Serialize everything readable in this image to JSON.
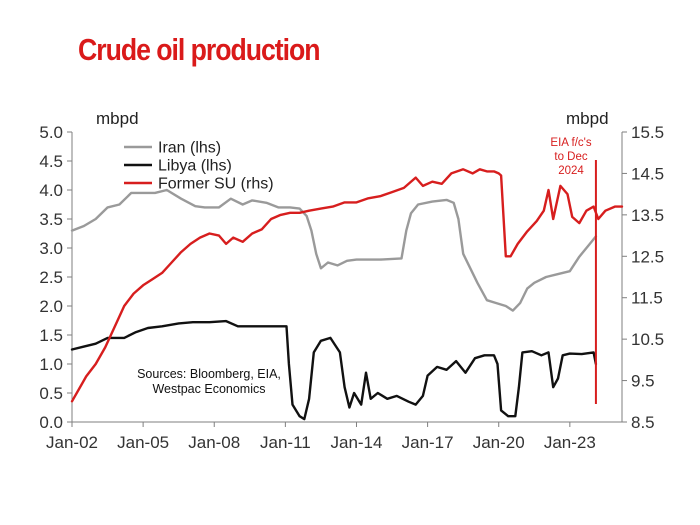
{
  "title": "Crude oil production",
  "chart_data": {
    "type": "line",
    "title": "Crude oil production",
    "left_axis": {
      "unit": "mbpd",
      "ylim": [
        0,
        5
      ],
      "ticks": [
        "0.0",
        "0.5",
        "1.0",
        "1.5",
        "2.0",
        "2.5",
        "3.0",
        "3.5",
        "4.0",
        "4.5",
        "5.0"
      ]
    },
    "right_axis": {
      "unit": "mbpd",
      "ylim": [
        8.5,
        15.5
      ],
      "ticks": [
        "8.5",
        "9.5",
        "10.5",
        "11.5",
        "12.5",
        "13.5",
        "14.5",
        "15.5"
      ]
    },
    "x_range": [
      2002.0,
      2025.2
    ],
    "x_ticks": [
      {
        "label": "Jan-02",
        "value": 2002
      },
      {
        "label": "Jan-05",
        "value": 2005
      },
      {
        "label": "Jan-08",
        "value": 2008
      },
      {
        "label": "Jan-11",
        "value": 2011
      },
      {
        "label": "Jan-14",
        "value": 2014
      },
      {
        "label": "Jan-17",
        "value": 2017
      },
      {
        "label": "Jan-20",
        "value": 2020
      },
      {
        "label": "Jan-23",
        "value": 2023
      }
    ],
    "grid": false,
    "legend_position": "top-left",
    "series": [
      {
        "name": "Iran (lhs)",
        "axis": "left",
        "color": "#9a9a9a",
        "points": [
          [
            2002.0,
            3.3
          ],
          [
            2002.5,
            3.38
          ],
          [
            2003.0,
            3.5
          ],
          [
            2003.5,
            3.7
          ],
          [
            2004.0,
            3.75
          ],
          [
            2004.5,
            3.95
          ],
          [
            2005.5,
            3.95
          ],
          [
            2006.0,
            4.0
          ],
          [
            2006.6,
            3.85
          ],
          [
            2007.2,
            3.72
          ],
          [
            2007.6,
            3.7
          ],
          [
            2008.2,
            3.7
          ],
          [
            2008.7,
            3.85
          ],
          [
            2009.2,
            3.75
          ],
          [
            2009.6,
            3.82
          ],
          [
            2010.2,
            3.78
          ],
          [
            2010.7,
            3.7
          ],
          [
            2011.2,
            3.7
          ],
          [
            2011.6,
            3.68
          ],
          [
            2011.9,
            3.55
          ],
          [
            2012.1,
            3.3
          ],
          [
            2012.3,
            2.9
          ],
          [
            2012.5,
            2.65
          ],
          [
            2012.8,
            2.75
          ],
          [
            2013.2,
            2.7
          ],
          [
            2013.6,
            2.78
          ],
          [
            2014.0,
            2.8
          ],
          [
            2015.0,
            2.8
          ],
          [
            2015.9,
            2.82
          ],
          [
            2016.1,
            3.3
          ],
          [
            2016.3,
            3.6
          ],
          [
            2016.6,
            3.75
          ],
          [
            2017.2,
            3.8
          ],
          [
            2017.8,
            3.83
          ],
          [
            2018.1,
            3.78
          ],
          [
            2018.3,
            3.5
          ],
          [
            2018.5,
            2.9
          ],
          [
            2018.8,
            2.65
          ],
          [
            2019.1,
            2.4
          ],
          [
            2019.5,
            2.1
          ],
          [
            2019.9,
            2.05
          ],
          [
            2020.3,
            2.0
          ],
          [
            2020.6,
            1.92
          ],
          [
            2020.9,
            2.05
          ],
          [
            2021.2,
            2.3
          ],
          [
            2021.5,
            2.4
          ],
          [
            2022.0,
            2.5
          ],
          [
            2022.5,
            2.55
          ],
          [
            2023.0,
            2.6
          ],
          [
            2023.4,
            2.85
          ],
          [
            2023.8,
            3.05
          ],
          [
            2024.1,
            3.2
          ]
        ]
      },
      {
        "name": "Libya (lhs)",
        "axis": "left",
        "color": "#111111",
        "points": [
          [
            2002.0,
            1.25
          ],
          [
            2002.5,
            1.3
          ],
          [
            2003.0,
            1.35
          ],
          [
            2003.5,
            1.45
          ],
          [
            2004.2,
            1.45
          ],
          [
            2004.7,
            1.55
          ],
          [
            2005.2,
            1.62
          ],
          [
            2005.8,
            1.65
          ],
          [
            2006.5,
            1.7
          ],
          [
            2007.1,
            1.72
          ],
          [
            2007.8,
            1.72
          ],
          [
            2008.5,
            1.74
          ],
          [
            2009.0,
            1.65
          ],
          [
            2009.5,
            1.65
          ],
          [
            2010.2,
            1.65
          ],
          [
            2011.05,
            1.65
          ],
          [
            2011.15,
            1.0
          ],
          [
            2011.3,
            0.3
          ],
          [
            2011.6,
            0.1
          ],
          [
            2011.8,
            0.05
          ],
          [
            2012.0,
            0.4
          ],
          [
            2012.2,
            1.2
          ],
          [
            2012.5,
            1.4
          ],
          [
            2012.9,
            1.45
          ],
          [
            2013.3,
            1.2
          ],
          [
            2013.5,
            0.6
          ],
          [
            2013.7,
            0.25
          ],
          [
            2013.9,
            0.5
          ],
          [
            2014.2,
            0.3
          ],
          [
            2014.4,
            0.85
          ],
          [
            2014.6,
            0.4
          ],
          [
            2014.9,
            0.5
          ],
          [
            2015.3,
            0.4
          ],
          [
            2015.7,
            0.45
          ],
          [
            2016.2,
            0.35
          ],
          [
            2016.5,
            0.3
          ],
          [
            2016.8,
            0.45
          ],
          [
            2017.0,
            0.8
          ],
          [
            2017.4,
            0.95
          ],
          [
            2017.8,
            0.9
          ],
          [
            2018.2,
            1.05
          ],
          [
            2018.6,
            0.85
          ],
          [
            2019.0,
            1.1
          ],
          [
            2019.4,
            1.15
          ],
          [
            2019.8,
            1.15
          ],
          [
            2019.95,
            1.0
          ],
          [
            2020.1,
            0.2
          ],
          [
            2020.4,
            0.1
          ],
          [
            2020.7,
            0.1
          ],
          [
            2020.85,
            0.6
          ],
          [
            2021.0,
            1.2
          ],
          [
            2021.4,
            1.22
          ],
          [
            2021.8,
            1.15
          ],
          [
            2022.1,
            1.2
          ],
          [
            2022.3,
            0.6
          ],
          [
            2022.5,
            0.75
          ],
          [
            2022.7,
            1.15
          ],
          [
            2023.0,
            1.18
          ],
          [
            2023.5,
            1.17
          ],
          [
            2024.0,
            1.2
          ],
          [
            2024.1,
            1.0
          ]
        ]
      },
      {
        "name": "Former SU (rhs)",
        "axis": "right",
        "color": "#d71e1e",
        "points": [
          [
            2002.0,
            9.0
          ],
          [
            2002.3,
            9.3
          ],
          [
            2002.6,
            9.6
          ],
          [
            2003.0,
            9.9
          ],
          [
            2003.4,
            10.3
          ],
          [
            2003.8,
            10.8
          ],
          [
            2004.2,
            11.3
          ],
          [
            2004.6,
            11.6
          ],
          [
            2005.0,
            11.8
          ],
          [
            2005.4,
            11.95
          ],
          [
            2005.8,
            12.1
          ],
          [
            2006.2,
            12.35
          ],
          [
            2006.6,
            12.6
          ],
          [
            2007.0,
            12.8
          ],
          [
            2007.4,
            12.95
          ],
          [
            2007.8,
            13.05
          ],
          [
            2008.2,
            13.0
          ],
          [
            2008.5,
            12.8
          ],
          [
            2008.8,
            12.95
          ],
          [
            2009.2,
            12.85
          ],
          [
            2009.6,
            13.05
          ],
          [
            2010.0,
            13.15
          ],
          [
            2010.4,
            13.4
          ],
          [
            2010.8,
            13.5
          ],
          [
            2011.2,
            13.55
          ],
          [
            2011.6,
            13.55
          ],
          [
            2012.0,
            13.6
          ],
          [
            2012.5,
            13.65
          ],
          [
            2013.0,
            13.7
          ],
          [
            2013.5,
            13.8
          ],
          [
            2014.0,
            13.8
          ],
          [
            2014.5,
            13.9
          ],
          [
            2015.0,
            13.95
          ],
          [
            2015.5,
            14.05
          ],
          [
            2016.0,
            14.15
          ],
          [
            2016.5,
            14.4
          ],
          [
            2016.8,
            14.2
          ],
          [
            2017.2,
            14.3
          ],
          [
            2017.6,
            14.25
          ],
          [
            2018.0,
            14.5
          ],
          [
            2018.5,
            14.6
          ],
          [
            2018.9,
            14.5
          ],
          [
            2019.2,
            14.6
          ],
          [
            2019.5,
            14.55
          ],
          [
            2019.8,
            14.55
          ],
          [
            2020.0,
            14.5
          ],
          [
            2020.1,
            14.45
          ],
          [
            2020.3,
            12.5
          ],
          [
            2020.5,
            12.5
          ],
          [
            2020.8,
            12.8
          ],
          [
            2021.2,
            13.1
          ],
          [
            2021.6,
            13.35
          ],
          [
            2021.9,
            13.6
          ],
          [
            2022.1,
            14.1
          ],
          [
            2022.3,
            13.4
          ],
          [
            2022.6,
            14.2
          ],
          [
            2022.9,
            14.0
          ],
          [
            2023.1,
            13.45
          ],
          [
            2023.4,
            13.3
          ],
          [
            2023.7,
            13.6
          ],
          [
            2024.0,
            13.7
          ],
          [
            2024.2,
            13.4
          ],
          [
            2024.5,
            13.6
          ],
          [
            2024.9,
            13.7
          ],
          [
            2025.2,
            13.7
          ]
        ]
      }
    ],
    "annotations": [
      {
        "text": "Sources: Bloomberg, EIA,\nWestpac Economics"
      },
      {
        "text": "EIA f/c's\nto Dec\n2024",
        "color": "#d71e1e"
      }
    ]
  }
}
